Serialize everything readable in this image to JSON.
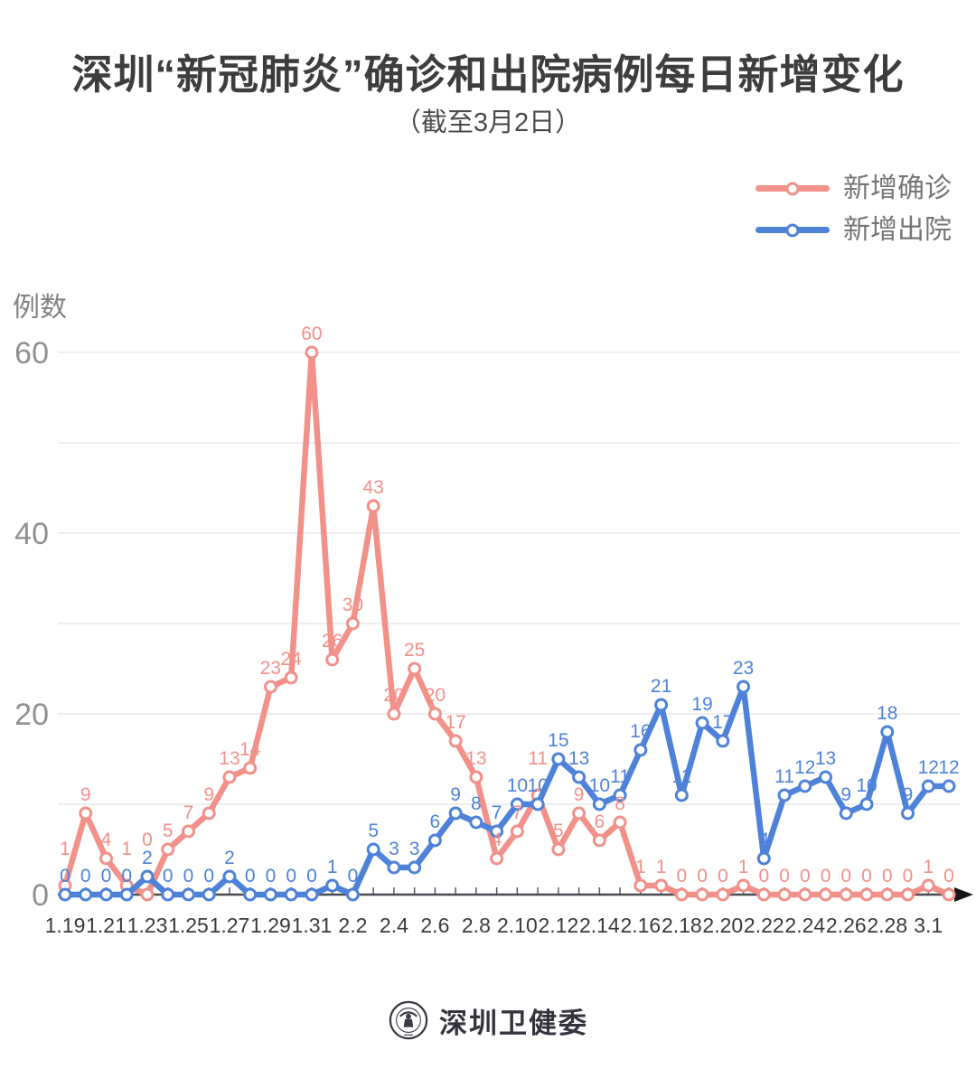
{
  "title": "深圳“新冠肺炎”确诊和出院病例每日新增变化",
  "subtitle": "（截至3月2日）",
  "y_axis": {
    "unit_label": "例数"
  },
  "legend": [
    {
      "label": "新增确诊",
      "color": "#f2908a"
    },
    {
      "label": "新增出院",
      "color": "#4d82d8"
    }
  ],
  "footer": {
    "org_name": "深圳卫健委",
    "logo": "shenzhen-health-commission-seal"
  },
  "chart_data": {
    "type": "line",
    "title": "深圳“新冠肺炎”确诊和出院病例每日新增变化",
    "subtitle": "（截至3月2日）",
    "ylabel": "例数",
    "ylim": [
      0,
      60
    ],
    "y_ticks": [
      0,
      20,
      40,
      60
    ],
    "grid_step": 10,
    "grid_on": true,
    "legend_position": "top-right",
    "x_label_every": 2,
    "categories": [
      "1.19",
      "1.20",
      "1.21",
      "1.22",
      "1.23",
      "1.24",
      "1.25",
      "1.26",
      "1.27",
      "1.28",
      "1.29",
      "1.30",
      "1.31",
      "2.1",
      "2.2",
      "2.3",
      "2.4",
      "2.5",
      "2.6",
      "2.7",
      "2.8",
      "2.9",
      "2.10",
      "2.11",
      "2.12",
      "2.13",
      "2.14",
      "2.15",
      "2.16",
      "2.17",
      "2.18",
      "2.19",
      "2.20",
      "2.21",
      "2.22",
      "2.23",
      "2.24",
      "2.25",
      "2.26",
      "2.27",
      "2.28",
      "2.29",
      "3.1",
      "3.2"
    ],
    "series": [
      {
        "name": "新增确诊",
        "color": "#f2908a",
        "values": [
          1,
          9,
          4,
          1,
          0,
          5,
          7,
          9,
          13,
          14,
          23,
          24,
          60,
          26,
          30,
          43,
          20,
          25,
          20,
          17,
          13,
          4,
          7,
          11,
          5,
          9,
          6,
          8,
          1,
          1,
          0,
          0,
          0,
          1,
          0,
          0,
          0,
          0,
          0,
          0,
          0,
          0,
          1,
          0
        ]
      },
      {
        "name": "新增出院",
        "color": "#4d82d8",
        "values": [
          0,
          0,
          0,
          0,
          2,
          0,
          0,
          0,
          2,
          0,
          0,
          0,
          0,
          1,
          0,
          5,
          3,
          3,
          6,
          9,
          8,
          7,
          10,
          10,
          15,
          13,
          10,
          11,
          16,
          21,
          11,
          19,
          17,
          23,
          4,
          11,
          12,
          13,
          9,
          10,
          18,
          9,
          12,
          12
        ]
      }
    ]
  }
}
